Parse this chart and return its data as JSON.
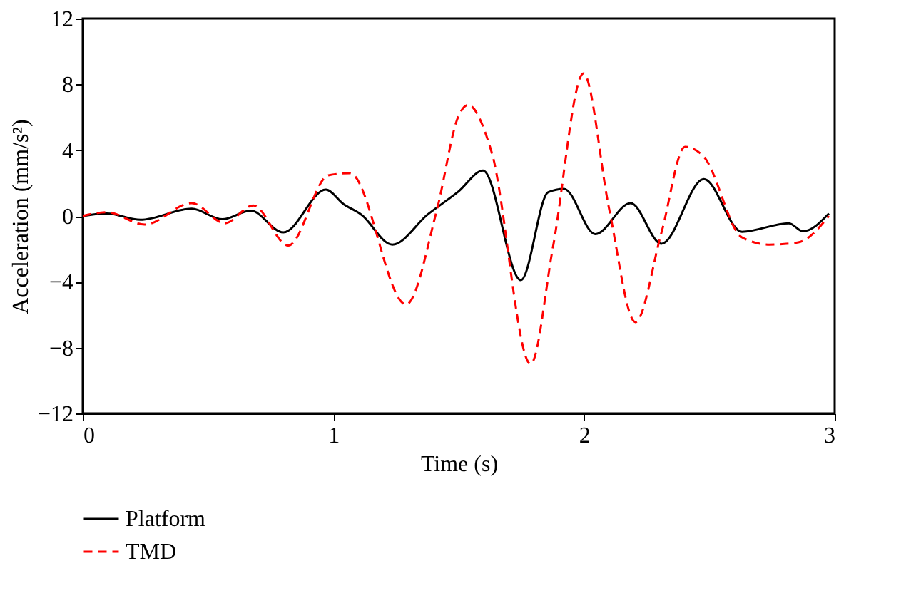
{
  "chart_data": {
    "type": "line",
    "xlabel": "Time (s)",
    "ylabel": "Acceleration (mm/s²)",
    "xlim": [
      0,
      3
    ],
    "xticks": [
      0,
      1,
      2,
      3
    ],
    "ylim": [
      -12,
      12
    ],
    "yticks": [
      -12,
      -8,
      -4,
      0,
      4,
      8,
      12
    ],
    "grid": false,
    "legend": "bottom left",
    "marker": "none",
    "series": [
      {
        "name": "Platform",
        "color": "#000000",
        "line_style": "solid",
        "x": [
          0,
          0.096,
          0.23,
          0.435,
          0.557,
          0.67,
          0.8,
          0.97,
          1.04,
          1.11,
          1.235,
          1.377,
          1.5,
          1.597,
          1.748,
          1.857,
          1.92,
          2.045,
          2.186,
          2.309,
          2.478,
          2.63,
          2.817,
          2.874,
          2.977
        ],
        "values": [
          0,
          0.15,
          -0.23,
          0.44,
          -0.2,
          0.32,
          -1.0,
          1.6,
          0.73,
          0.1,
          -1.74,
          0.1,
          1.5,
          2.76,
          -3.9,
          1.45,
          1.65,
          -1.1,
          0.78,
          -1.69,
          2.24,
          -0.96,
          -0.44,
          -0.93,
          0.15
        ]
      },
      {
        "name": "TMD",
        "color": "#ff0000",
        "line_style": "dashed",
        "x": [
          0,
          0.096,
          0.247,
          0.435,
          0.567,
          0.68,
          0.82,
          0.98,
          1.066,
          1.29,
          1.414,
          1.5,
          1.537,
          1.631,
          1.787,
          1.876,
          1.998,
          2.1,
          2.205,
          2.309,
          2.403,
          2.478,
          2.63,
          2.74,
          2.855,
          2.977
        ],
        "values": [
          0,
          0.23,
          -0.52,
          0.78,
          -0.44,
          0.64,
          -1.8,
          2.47,
          2.6,
          -5.38,
          0.44,
          6.1,
          6.74,
          3.9,
          -9.0,
          -1.9,
          8.66,
          0.44,
          -6.45,
          -1.0,
          4.2,
          3.6,
          -1.3,
          -1.74,
          -1.6,
          0
        ]
      }
    ]
  }
}
